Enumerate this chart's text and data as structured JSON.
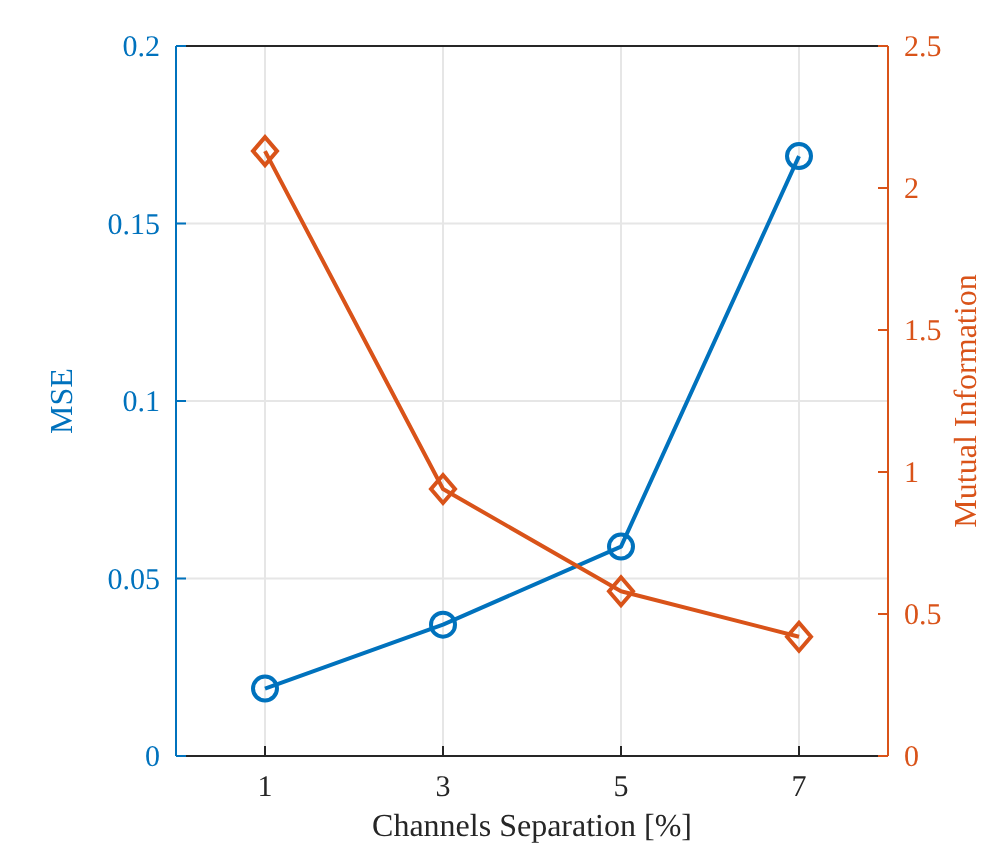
{
  "chart_data": {
    "type": "line",
    "xlabel": "Channels Separation [%]",
    "ylabel": "MSE",
    "y2label": "Mutual Information",
    "x": [
      1,
      3,
      5,
      7
    ],
    "xlim": [
      0,
      8
    ],
    "xticks": [
      1,
      3,
      5,
      7
    ],
    "ylim": [
      0,
      0.2
    ],
    "yticks": [
      0,
      0.05,
      0.1,
      0.15,
      0.2
    ],
    "y2lim": [
      0,
      2.5
    ],
    "y2ticks": [
      0,
      0.5,
      1,
      1.5,
      2,
      2.5
    ],
    "grid": true,
    "line_style": "solid",
    "series": [
      {
        "color": "#0072bd",
        "marker": "circle",
        "values": [
          0.019,
          0.037,
          0.059,
          0.169
        ]
      },
      {
        "color": "#d95319",
        "marker": "diamond",
        "axis": "y2",
        "values": [
          2.13,
          0.94,
          0.58,
          0.42
        ]
      }
    ]
  }
}
